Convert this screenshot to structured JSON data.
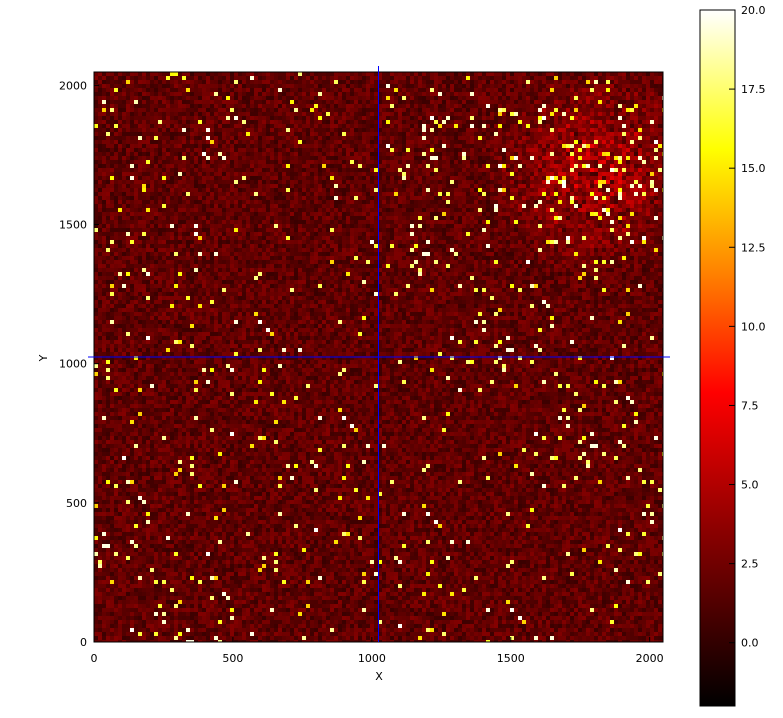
{
  "chart_data": [
    {
      "type": "heatmap",
      "title": "",
      "xlabel": "X",
      "ylabel": "Y",
      "xlim": [
        0,
        2048
      ],
      "ylim": [
        0,
        2048
      ],
      "x_ticks": [
        0,
        500,
        1000,
        1500,
        2000
      ],
      "y_ticks": [
        0,
        500,
        1000,
        1500,
        2000
      ],
      "x_tick_labels": [
        "0",
        "500",
        "1000",
        "1500",
        "2000"
      ],
      "y_tick_labels": [
        "0",
        "500",
        "1000",
        "1500",
        "2000"
      ],
      "colormap": "hot",
      "grid": false,
      "description_values": {
        "background_level": 1.5,
        "noise_spread": 3,
        "bright_region_center": [
          1800,
          1700
        ],
        "bright_region_level": 6
      },
      "crosshair": {
        "x": 1024,
        "y": 1024,
        "color": "#0000ff"
      },
      "colorbar": {
        "vmin": -2,
        "vmax": 20,
        "ticks": [
          0.0,
          2.5,
          5.0,
          7.5,
          10.0,
          12.5,
          15.0,
          17.5,
          20.0
        ],
        "tick_labels": [
          "0.0",
          "2.5",
          "5.0",
          "7.5",
          "10.0",
          "12.5",
          "15.0",
          "17.5",
          "20.0"
        ],
        "stops": [
          "#000000",
          "#8a0000",
          "#ff0000",
          "#ff8000",
          "#ffff00",
          "#ffffff"
        ]
      }
    }
  ]
}
